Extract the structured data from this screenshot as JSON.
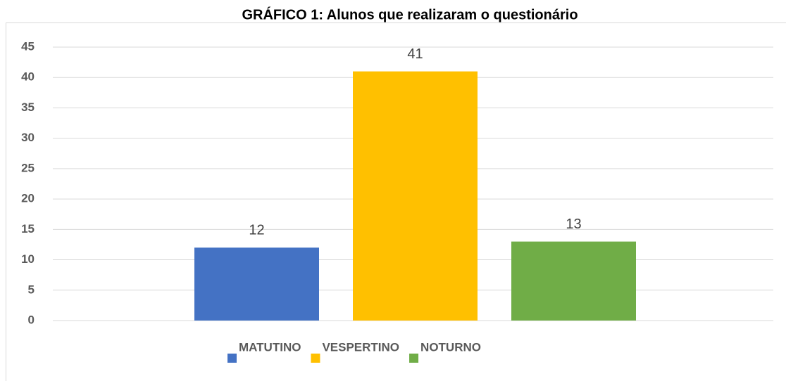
{
  "chart_data": {
    "type": "bar",
    "title": "GRÁFICO 1: Alunos que realizaram o questionário",
    "categories": [
      null
    ],
    "series": [
      {
        "name": "MATUTINO",
        "color": "#4472c4",
        "values": [
          12
        ]
      },
      {
        "name": "VESPERTINO",
        "color": "#ffc000",
        "values": [
          41
        ]
      },
      {
        "name": "NOTURNO",
        "color": "#70ad47",
        "values": [
          13
        ]
      }
    ],
    "ylim": [
      0,
      45
    ],
    "yticks": [
      0,
      5,
      10,
      15,
      20,
      25,
      30,
      35,
      40,
      45
    ],
    "grid": true,
    "legend": "bottom"
  }
}
